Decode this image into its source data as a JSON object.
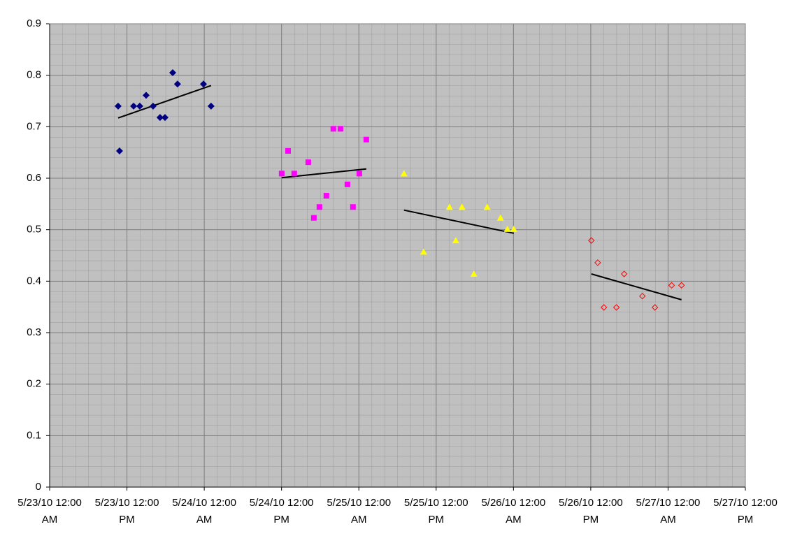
{
  "chart_data": {
    "type": "scatter",
    "xlim": [
      40321,
      40325.5
    ],
    "xticks": [
      {
        "value": 40321,
        "label": "5/23/10 12:00 AM"
      },
      {
        "value": 40321.5,
        "label": "5/23/10 12:00 PM"
      },
      {
        "value": 40322,
        "label": "5/24/10 12:00 AM"
      },
      {
        "value": 40322.5,
        "label": "5/24/10 12:00 PM"
      },
      {
        "value": 40323,
        "label": "5/25/10 12:00 AM"
      },
      {
        "value": 40323.5,
        "label": "5/25/10 12:00 PM"
      },
      {
        "value": 40324,
        "label": "5/26/10 12:00 AM"
      },
      {
        "value": 40324.5,
        "label": "5/26/10 12:00 PM"
      },
      {
        "value": 40325,
        "label": "5/27/10 12:00 AM"
      },
      {
        "value": 40325.5,
        "label": "5/27/10 12:00 PM"
      }
    ],
    "ylim": [
      0,
      0.9
    ],
    "yticks": [
      0,
      0.1,
      0.2,
      0.3,
      0.4,
      0.5,
      0.6,
      0.7,
      0.8,
      0.9
    ],
    "grid": true,
    "plot_background": "#c0c0c0",
    "series": [
      {
        "color": "#000080",
        "marker": "diamond",
        "x": [
          40321.443,
          40321.452,
          40321.543,
          40321.583,
          40321.624,
          40321.669,
          40321.714,
          40321.746,
          40321.796,
          40321.827,
          40321.995,
          40322.044
        ],
        "values": [
          0.74,
          0.653,
          0.74,
          0.74,
          0.761,
          0.74,
          0.718,
          0.718,
          0.805,
          0.783,
          0.783,
          0.74
        ],
        "trendline": {
          "x": [
            40321.443,
            40322.044
          ],
          "values": [
            0.717,
            0.78
          ]
        }
      },
      {
        "color": "#ff00ff",
        "marker": "square",
        "x": [
          40322.501,
          40322.542,
          40322.582,
          40322.673,
          40322.709,
          40322.745,
          40322.79,
          40322.835,
          40322.881,
          40322.926,
          40322.962,
          40323.003,
          40323.048
        ],
        "values": [
          0.609,
          0.653,
          0.609,
          0.631,
          0.523,
          0.544,
          0.566,
          0.696,
          0.696,
          0.588,
          0.544,
          0.609,
          0.675
        ],
        "trendline": {
          "x": [
            40322.501,
            40323.048
          ],
          "values": [
            0.601,
            0.618
          ]
        }
      },
      {
        "color": "#ffff00",
        "marker": "triangle",
        "x": [
          40323.292,
          40323.419,
          40323.586,
          40323.627,
          40323.667,
          40323.744,
          40323.83,
          40323.916,
          40323.961,
          40324.002
        ],
        "values": [
          0.609,
          0.457,
          0.544,
          0.479,
          0.544,
          0.414,
          0.544,
          0.523,
          0.501,
          0.501
        ],
        "trendline": {
          "x": [
            40323.292,
            40324.002
          ],
          "values": [
            0.538,
            0.493
          ]
        }
      },
      {
        "color": "#ff0000",
        "marker": "diamond-open",
        "x": [
          40324.504,
          40324.545,
          40324.585,
          40324.666,
          40324.716,
          40324.834,
          40324.915,
          40325.023,
          40325.087
        ],
        "values": [
          0.479,
          0.436,
          0.349,
          0.349,
          0.414,
          0.371,
          0.349,
          0.392,
          0.392
        ],
        "trendline": {
          "x": [
            40324.504,
            40325.087
          ],
          "values": [
            0.414,
            0.364
          ]
        }
      }
    ]
  }
}
